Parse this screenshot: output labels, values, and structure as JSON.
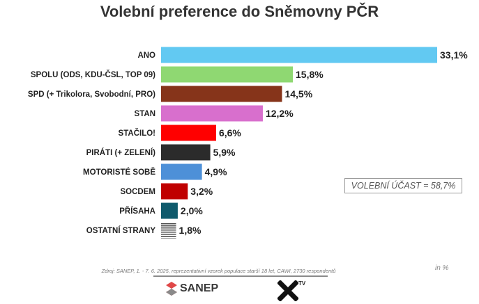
{
  "chart_data": {
    "type": "bar",
    "orientation": "horizontal",
    "title": "Volební preference do Sněmovny PČR",
    "categories": [
      "ANO",
      "SPOLU (ODS, KDU-ČSL, TOP 09)",
      "SPD (+ Trikolora, Svobodní, PRO)",
      "STAN",
      "STAČILO!",
      "PIRÁTI (+ ZELENÍ)",
      "MOTORISTÉ SOBĚ",
      "SOCDEM",
      "PŘÍSAHA",
      "OSTATNÍ STRANY"
    ],
    "values": [
      33.1,
      15.8,
      14.5,
      12.2,
      6.6,
      5.9,
      4.9,
      3.2,
      2.0,
      1.8
    ],
    "value_labels": [
      "33,1%",
      "15,8%",
      "14,5%",
      "12,2%",
      "6,6%",
      "5,9%",
      "4,9%",
      "3,2%",
      "2,0%",
      "1,8%"
    ],
    "colors": [
      "#62c9f2",
      "#8fd872",
      "#86341a",
      "#d86fcd",
      "#ff0000",
      "#2b2b2b",
      "#4d90d8",
      "#c00000",
      "#0f5a6c",
      "striped-gray"
    ],
    "xlim": [
      0,
      33.1
    ],
    "grid": false,
    "legend": "none",
    "annotation": "VOLEBNÍ ÚČAST = 58,7%",
    "source": "Zdroj: SANEP, 1. - 7. 6. 2025, reprezentativní vzorek populace starší 18 let, CAWI, 2730 respondentů",
    "unit_note": "in %"
  },
  "logos": {
    "sanep": "SANEP",
    "xtv": "TV"
  }
}
